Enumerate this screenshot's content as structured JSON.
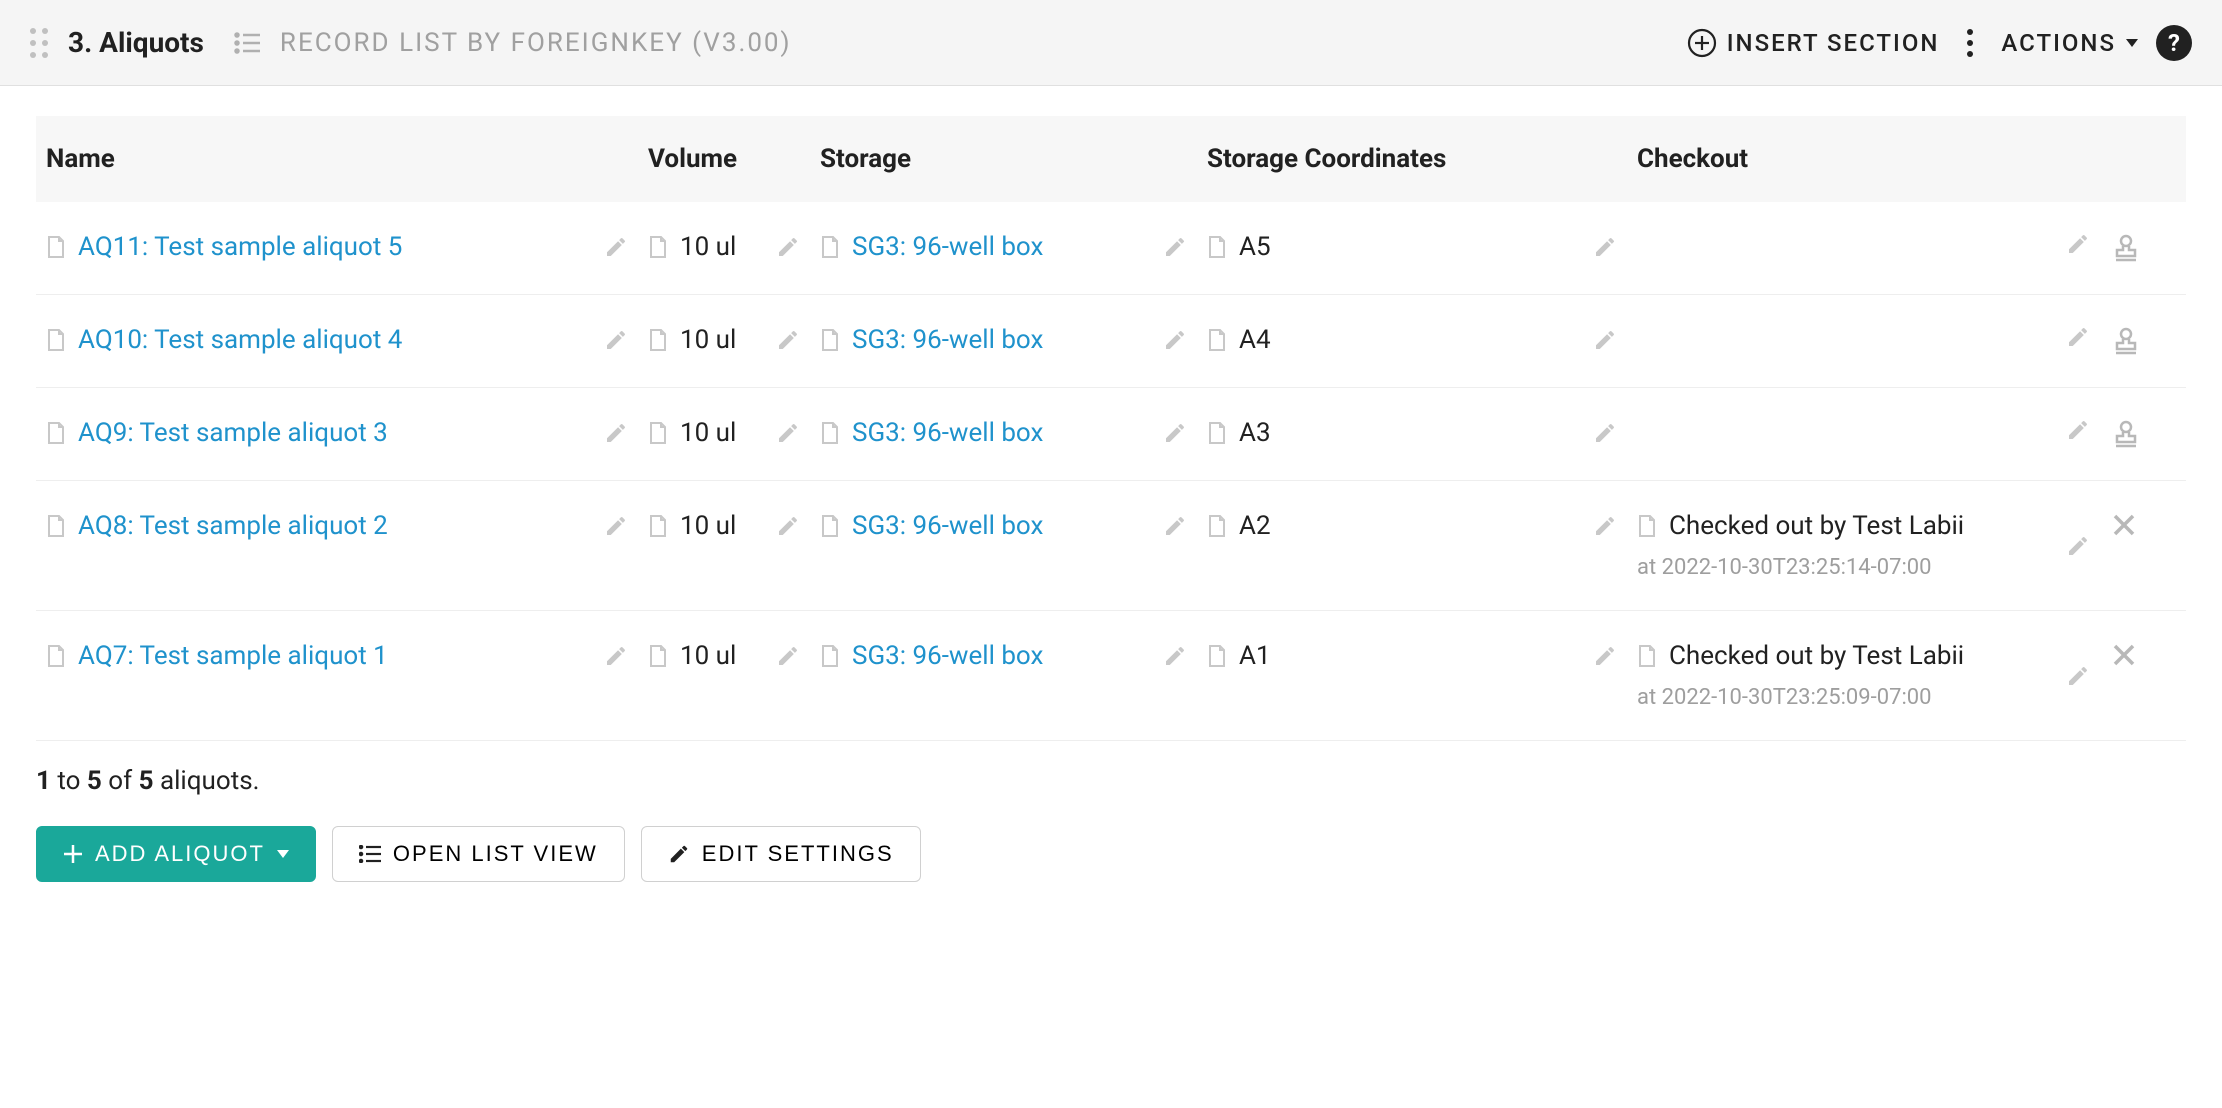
{
  "header": {
    "title": "3. Aliquots",
    "subtitle": "RECORD LIST BY FOREIGNKEY (V3.00)",
    "insert_label": "INSERT SECTION",
    "actions_label": "ACTIONS"
  },
  "columns": {
    "name": "Name",
    "volume": "Volume",
    "storage": "Storage",
    "coords": "Storage Coordinates",
    "checkout": "Checkout"
  },
  "rows": [
    {
      "name": "AQ11: Test sample aliquot 5",
      "volume": "10 ul",
      "storage": "SG3: 96-well box",
      "coords": "A5",
      "checkout": "",
      "checkout_sub": "",
      "action": "stamp"
    },
    {
      "name": "AQ10: Test sample aliquot 4",
      "volume": "10 ul",
      "storage": "SG3: 96-well box",
      "coords": "A4",
      "checkout": "",
      "checkout_sub": "",
      "action": "stamp"
    },
    {
      "name": "AQ9: Test sample aliquot 3",
      "volume": "10 ul",
      "storage": "SG3: 96-well box",
      "coords": "A3",
      "checkout": "",
      "checkout_sub": "",
      "action": "stamp"
    },
    {
      "name": "AQ8: Test sample aliquot 2",
      "volume": "10 ul",
      "storage": "SG3: 96-well box",
      "coords": "A2",
      "checkout": "Checked out by Test Labii",
      "checkout_sub": "at 2022-10-30T23:25:14-07:00",
      "action": "x"
    },
    {
      "name": "AQ7: Test sample aliquot 1",
      "volume": "10 ul",
      "storage": "SG3: 96-well box",
      "coords": "A1",
      "checkout": "Checked out by Test Labii",
      "checkout_sub": "at 2022-10-30T23:25:09-07:00",
      "action": "x"
    }
  ],
  "pagination": {
    "from": "1",
    "to": "5",
    "of": "5",
    "unit": "aliquots"
  },
  "toolbar": {
    "add": "ADD ALIQUOT",
    "open_list": "OPEN LIST VIEW",
    "edit_settings": "EDIT SETTINGS"
  },
  "colors": {
    "link": "#1f92cc",
    "primary": "#1aa89a",
    "icon_muted": "#c8c8c8",
    "text_muted": "#9e9e9e",
    "header_bg": "#f5f5f5",
    "thead_bg": "#f7f7f7",
    "border": "#eeeeee"
  }
}
